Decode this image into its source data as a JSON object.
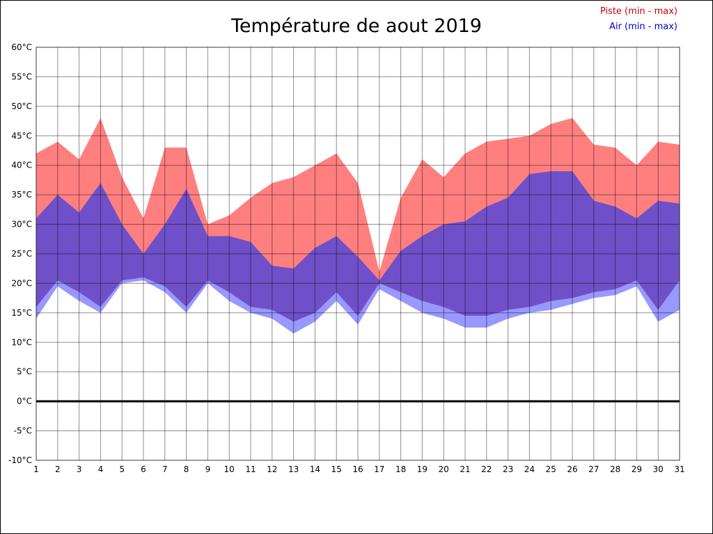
{
  "legend": {
    "piste_label": "Piste (min - max)",
    "air_label": "Air (min - max)",
    "piste_color": "#cc0000",
    "air_color": "#0000cc"
  },
  "chart_data": {
    "type": "area",
    "title": "Température de aout 2019",
    "xlabel": "",
    "ylabel": "",
    "y_unit": "°C",
    "y_min": -10,
    "y_max": 60,
    "y_tick_step": 5,
    "y_tick_labels": [
      "60°C",
      "55°C",
      "50°C",
      "45°C",
      "40°C",
      "35°C",
      "30°C",
      "25°C",
      "20°C",
      "15°C",
      "10°C",
      "5°C",
      "0°C",
      "-5°C",
      "-10°C"
    ],
    "grid": true,
    "legend_position": "top-right",
    "days": [
      1,
      2,
      3,
      4,
      5,
      6,
      7,
      8,
      9,
      10,
      11,
      12,
      13,
      14,
      15,
      16,
      17,
      18,
      19,
      20,
      21,
      22,
      23,
      24,
      25,
      26,
      27,
      28,
      29,
      30,
      31
    ],
    "series": [
      {
        "key": "piste_max",
        "name": "Piste max",
        "values": [
          42,
          44,
          41,
          48,
          38,
          31,
          43,
          43,
          30,
          31.5,
          34.5,
          37,
          38,
          40,
          42,
          37,
          22,
          34.5,
          41,
          38,
          42,
          44,
          44.5,
          45,
          47,
          48,
          43.5,
          43,
          40,
          44,
          43.5
        ]
      },
      {
        "key": "piste_min",
        "name": "Piste min",
        "values": [
          16,
          20.5,
          18.5,
          16,
          20.5,
          21,
          19.5,
          16,
          20.5,
          18.5,
          16,
          15.5,
          13.5,
          15,
          18.5,
          14.5,
          20,
          18.5,
          17,
          16,
          14.5,
          14.5,
          15.5,
          16,
          17,
          17.5,
          18.5,
          19,
          20.5,
          15.5,
          20.5
        ]
      },
      {
        "key": "air_max",
        "name": "Air max",
        "values": [
          31,
          35,
          32,
          37,
          30,
          25,
          30,
          36,
          28,
          28,
          27,
          23,
          22.5,
          26,
          28,
          24.5,
          20.5,
          25.5,
          28,
          30,
          30.5,
          33,
          34.5,
          38.5,
          39,
          39,
          34,
          33,
          31,
          34,
          33.5
        ]
      },
      {
        "key": "air_min",
        "name": "Air min",
        "values": [
          14,
          19.5,
          17,
          15,
          20,
          20.5,
          18.5,
          15,
          20,
          17,
          15,
          14,
          11.5,
          13.5,
          17,
          13,
          19,
          17,
          15,
          14,
          12.5,
          12.5,
          14,
          15,
          15.5,
          16.5,
          17.5,
          18,
          19.5,
          13.5,
          15.5
        ]
      }
    ],
    "colors": {
      "piste_band": "#ff7f7f",
      "air_band": "#9898ff",
      "overlap_band": "#7050c8",
      "grid": "#000000",
      "zero_line": "#000000",
      "axis_text": "#000000"
    }
  }
}
